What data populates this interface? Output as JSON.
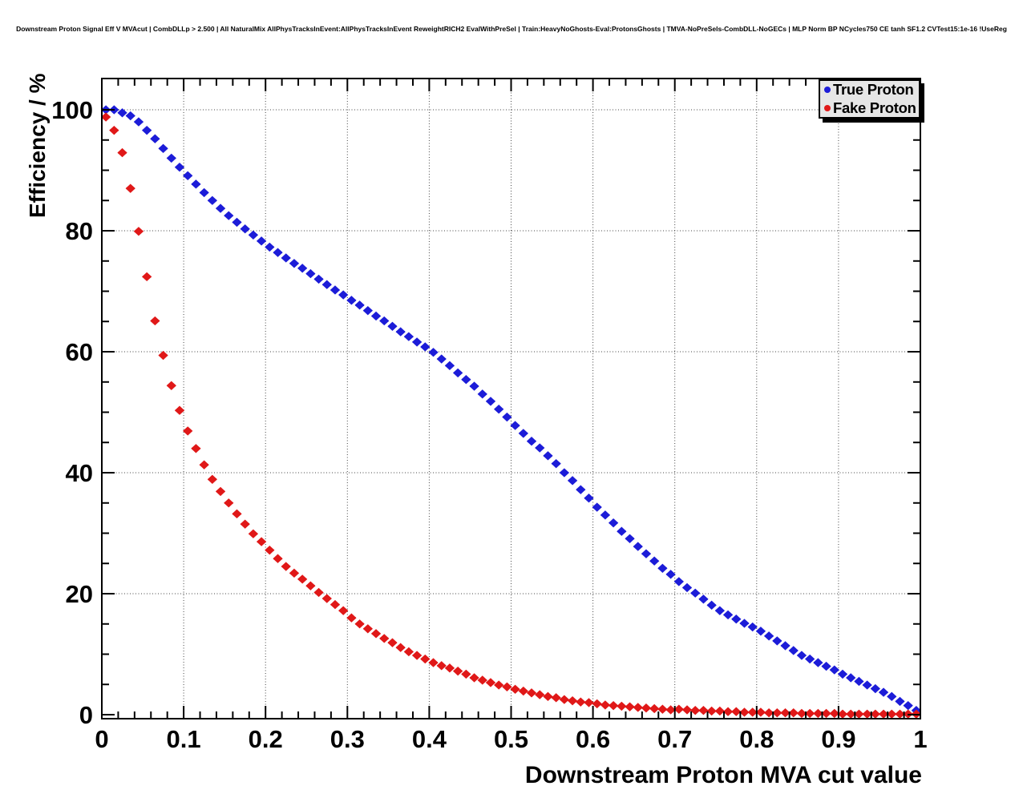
{
  "header": {
    "title": "Downstream Proton Signal Eff V MVAcut | CombDLLp > 2.500 | All NaturalMix AllPhysTracksInEvent:AllPhysTracksInEvent ReweightRICH2 EvalWithPreSel | Train:HeavyNoGhosts-Eval:ProtonsGhosts | TMVA-NoPreSels-CombDLL-NoGECs | MLP Norm BP NCycles750 CE tanh SF1.2 CVTest15:1e-16 !UseReg"
  },
  "colors": {
    "true_proton": "#1c1cd8",
    "fake_proton": "#e01818",
    "frame": "#000000",
    "grid": "#444444",
    "legend_bg": "#e6e6e6"
  },
  "chart_data": {
    "type": "scatter",
    "title": "Downstream Proton Signal Eff V MVAcut",
    "xlabel": "Downstream Proton MVA cut value",
    "ylabel": "Efficiency / %",
    "xlim": [
      0,
      1
    ],
    "ylim": [
      0,
      105
    ],
    "grid": true,
    "grid_style": "dotted",
    "legend_position": "top-right",
    "x_ticks": [
      0,
      0.1,
      0.2,
      0.3,
      0.4,
      0.5,
      0.6,
      0.7,
      0.8,
      0.9,
      1
    ],
    "x_tick_labels": [
      "0",
      "0.1",
      "0.2",
      "0.3",
      "0.4",
      "0.5",
      "0.6",
      "0.7",
      "0.8",
      "0.9",
      "1"
    ],
    "x_minor_step": 0.02,
    "y_ticks": [
      0,
      20,
      40,
      60,
      80,
      100
    ],
    "y_tick_labels": [
      "0",
      "20",
      "40",
      "60",
      "80",
      "100"
    ],
    "y_minor_step": 5,
    "x_error_halfwidth": 0.005,
    "series": [
      {
        "name": "True Proton",
        "color": "#1c1cd8",
        "marker": "diamond",
        "x": [
          0.005,
          0.015,
          0.025,
          0.035,
          0.045,
          0.055,
          0.065,
          0.075,
          0.085,
          0.095,
          0.105,
          0.115,
          0.125,
          0.135,
          0.145,
          0.155,
          0.165,
          0.175,
          0.185,
          0.195,
          0.205,
          0.215,
          0.225,
          0.235,
          0.245,
          0.255,
          0.265,
          0.275,
          0.285,
          0.295,
          0.305,
          0.315,
          0.325,
          0.335,
          0.345,
          0.355,
          0.365,
          0.375,
          0.385,
          0.395,
          0.405,
          0.415,
          0.425,
          0.435,
          0.445,
          0.455,
          0.465,
          0.475,
          0.485,
          0.495,
          0.505,
          0.515,
          0.525,
          0.535,
          0.545,
          0.555,
          0.565,
          0.575,
          0.585,
          0.595,
          0.605,
          0.615,
          0.625,
          0.635,
          0.645,
          0.655,
          0.665,
          0.675,
          0.685,
          0.695,
          0.705,
          0.715,
          0.725,
          0.735,
          0.745,
          0.755,
          0.765,
          0.775,
          0.785,
          0.795,
          0.805,
          0.815,
          0.825,
          0.835,
          0.845,
          0.855,
          0.865,
          0.875,
          0.885,
          0.895,
          0.905,
          0.915,
          0.925,
          0.935,
          0.945,
          0.955,
          0.965,
          0.975,
          0.985,
          0.995
        ],
        "y": [
          100.0,
          100.0,
          99.5,
          99.0,
          98.0,
          96.6,
          95.2,
          93.6,
          92.0,
          90.5,
          89.1,
          87.7,
          86.3,
          85.0,
          83.7,
          82.5,
          81.4,
          80.3,
          79.3,
          78.3,
          77.3,
          76.4,
          75.5,
          74.6,
          73.8,
          72.9,
          72.0,
          71.1,
          70.2,
          69.4,
          68.5,
          67.7,
          66.8,
          65.9,
          65.1,
          64.2,
          63.3,
          62.5,
          61.6,
          60.8,
          59.9,
          58.8,
          57.7,
          56.5,
          55.4,
          54.3,
          53.0,
          51.8,
          50.5,
          49.2,
          47.8,
          46.5,
          45.2,
          44.1,
          42.8,
          41.5,
          40.0,
          38.7,
          37.2,
          35.8,
          34.3,
          33.0,
          31.7,
          30.3,
          29.1,
          27.8,
          26.6,
          25.4,
          24.2,
          23.2,
          22.0,
          21.0,
          20.1,
          19.1,
          18.1,
          17.2,
          16.5,
          15.8,
          15.1,
          14.5,
          13.8,
          13.0,
          12.2,
          11.4,
          10.6,
          9.8,
          9.2,
          8.6,
          8.0,
          7.4,
          6.7,
          6.1,
          5.5,
          4.9,
          4.3,
          3.7,
          3.0,
          2.2,
          1.5,
          0.7
        ]
      },
      {
        "name": "Fake Proton",
        "color": "#e01818",
        "marker": "diamond",
        "x": [
          0.005,
          0.015,
          0.025,
          0.035,
          0.045,
          0.055,
          0.065,
          0.075,
          0.085,
          0.095,
          0.105,
          0.115,
          0.125,
          0.135,
          0.145,
          0.155,
          0.165,
          0.175,
          0.185,
          0.195,
          0.205,
          0.215,
          0.225,
          0.235,
          0.245,
          0.255,
          0.265,
          0.275,
          0.285,
          0.295,
          0.305,
          0.315,
          0.325,
          0.335,
          0.345,
          0.355,
          0.365,
          0.375,
          0.385,
          0.395,
          0.405,
          0.415,
          0.425,
          0.435,
          0.445,
          0.455,
          0.465,
          0.475,
          0.485,
          0.495,
          0.505,
          0.515,
          0.525,
          0.535,
          0.545,
          0.555,
          0.565,
          0.575,
          0.585,
          0.595,
          0.605,
          0.615,
          0.625,
          0.635,
          0.645,
          0.655,
          0.665,
          0.675,
          0.685,
          0.695,
          0.705,
          0.715,
          0.725,
          0.735,
          0.745,
          0.755,
          0.765,
          0.775,
          0.785,
          0.795,
          0.805,
          0.815,
          0.825,
          0.835,
          0.845,
          0.855,
          0.865,
          0.875,
          0.885,
          0.895,
          0.905,
          0.915,
          0.925,
          0.935,
          0.945,
          0.955,
          0.965,
          0.975,
          0.985,
          0.995
        ],
        "y": [
          98.8,
          96.6,
          92.9,
          87.0,
          79.9,
          72.4,
          65.1,
          59.4,
          54.4,
          50.3,
          46.9,
          44.0,
          41.3,
          38.9,
          36.9,
          35.0,
          33.2,
          31.5,
          29.9,
          28.6,
          27.2,
          25.8,
          24.5,
          23.4,
          22.4,
          21.3,
          20.2,
          19.2,
          18.2,
          17.2,
          16.0,
          15.0,
          14.2,
          13.4,
          12.6,
          11.9,
          11.1,
          10.4,
          9.8,
          9.2,
          8.6,
          8.1,
          7.7,
          7.2,
          6.7,
          6.1,
          5.7,
          5.3,
          4.9,
          4.6,
          4.2,
          3.9,
          3.6,
          3.3,
          3.0,
          2.8,
          2.5,
          2.3,
          2.1,
          2.0,
          1.8,
          1.6,
          1.5,
          1.4,
          1.3,
          1.2,
          1.1,
          1.0,
          0.9,
          0.8,
          0.9,
          0.8,
          0.7,
          0.7,
          0.6,
          0.6,
          0.5,
          0.5,
          0.4,
          0.4,
          0.4,
          0.3,
          0.3,
          0.3,
          0.3,
          0.2,
          0.2,
          0.2,
          0.2,
          0.2,
          0.1,
          0.1,
          0.1,
          0.1,
          0.1,
          0.1,
          0.1,
          0.1,
          0.1,
          0.1
        ]
      }
    ]
  }
}
